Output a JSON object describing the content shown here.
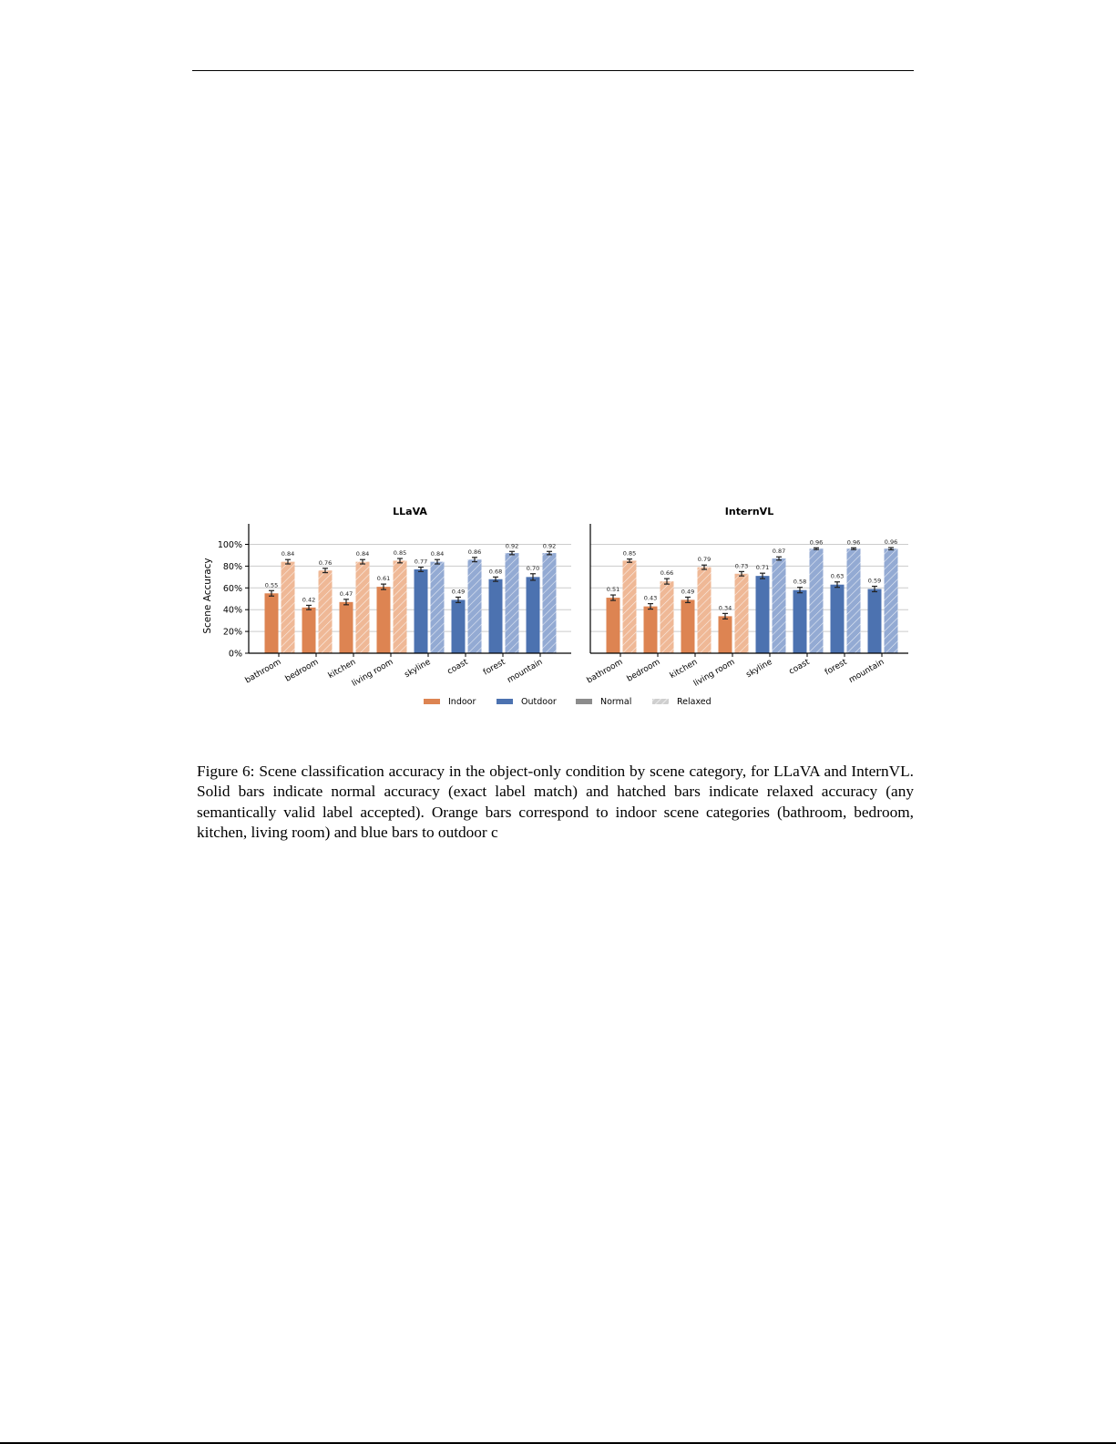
{
  "figure": {
    "number": "Figure 6:",
    "caption": "Scene classification accuracy in the object-only condition by scene category, for LLaVA and InternVL. Solid bars indicate normal accuracy (exact label match) and hatched bars indicate relaxed accuracy (any semantically valid label accepted). Orange bars correspond to indoor scene categories (bathroom, bedroom, kitchen, living room) and blue bars to outdoor c"
  },
  "colors": {
    "indoor": "#dd8452",
    "indoor_relaxed": "#efb896",
    "outdoor": "#4c72b0",
    "outdoor_relaxed": "#93aad3",
    "normal_legend": "#8c8c8c",
    "relaxed_legend": "#c8c8c8",
    "grid": "#cccccc"
  },
  "legend": [
    {
      "label": "Indoor",
      "kind": "indoor"
    },
    {
      "label": "Outdoor",
      "kind": "outdoor"
    },
    {
      "label": "Normal",
      "kind": "normal"
    },
    {
      "label": "Relaxed",
      "kind": "relaxed"
    }
  ],
  "chart_data": [
    {
      "type": "bar",
      "title": "LLaVA",
      "xlabel": "",
      "ylabel": "Scene Accuracy",
      "ylim": [
        0,
        1.15
      ],
      "yticks": [
        "0%",
        "20%",
        "40%",
        "60%",
        "80%",
        "100%"
      ],
      "grid": true,
      "categories": [
        "bathroom",
        "bedroom",
        "kitchen",
        "living room",
        "skyline",
        "coast",
        "forest",
        "mountain"
      ],
      "group": [
        "Indoor",
        "Indoor",
        "Indoor",
        "Indoor",
        "Outdoor",
        "Outdoor",
        "Outdoor",
        "Outdoor"
      ],
      "series": [
        {
          "name": "Normal",
          "values": [
            0.55,
            0.42,
            0.47,
            0.61,
            0.77,
            0.49,
            0.68,
            0.7
          ],
          "err": [
            0.025,
            0.02,
            0.025,
            0.025,
            0.02,
            0.025,
            0.02,
            0.03
          ]
        },
        {
          "name": "Relaxed",
          "values": [
            0.84,
            0.76,
            0.84,
            0.85,
            0.84,
            0.86,
            0.92,
            0.92
          ],
          "err": [
            0.02,
            0.02,
            0.02,
            0.02,
            0.02,
            0.02,
            0.015,
            0.015
          ]
        }
      ],
      "legend_position": "bottom center"
    },
    {
      "type": "bar",
      "title": "InternVL",
      "xlabel": "",
      "ylabel": "",
      "ylim": [
        0,
        1.15
      ],
      "grid": true,
      "categories": [
        "bathroom",
        "bedroom",
        "kitchen",
        "living room",
        "skyline",
        "coast",
        "forest",
        "mountain"
      ],
      "group": [
        "Indoor",
        "Indoor",
        "Indoor",
        "Indoor",
        "Outdoor",
        "Outdoor",
        "Outdoor",
        "Outdoor"
      ],
      "series": [
        {
          "name": "Normal",
          "values": [
            0.51,
            0.43,
            0.49,
            0.34,
            0.71,
            0.58,
            0.63,
            0.59
          ],
          "err": [
            0.025,
            0.025,
            0.025,
            0.025,
            0.025,
            0.025,
            0.025,
            0.025
          ]
        },
        {
          "name": "Relaxed",
          "values": [
            0.85,
            0.66,
            0.79,
            0.73,
            0.87,
            0.96,
            0.96,
            0.96
          ],
          "err": [
            0.015,
            0.025,
            0.02,
            0.02,
            0.015,
            0.008,
            0.008,
            0.01
          ]
        }
      ],
      "legend_position": "bottom center"
    }
  ]
}
